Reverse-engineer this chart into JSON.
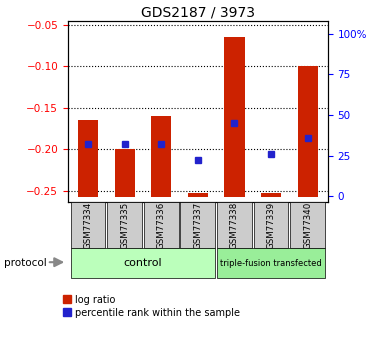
{
  "title": "GDS2187 / 3973",
  "samples": [
    "GSM77334",
    "GSM77335",
    "GSM77336",
    "GSM77337",
    "GSM77338",
    "GSM77339",
    "GSM77340"
  ],
  "log_ratio": [
    -0.165,
    -0.2,
    -0.16,
    -0.252,
    -0.065,
    -0.252,
    -0.1
  ],
  "bar_bottom": -0.257,
  "percentile_rank": [
    32,
    32,
    32,
    22,
    45,
    26,
    36
  ],
  "ylim_left": [
    -0.263,
    -0.045
  ],
  "ylim_right": [
    -3.5,
    108
  ],
  "yticks_left": [
    -0.25,
    -0.2,
    -0.15,
    -0.1,
    -0.05
  ],
  "yticks_right": [
    0,
    25,
    50,
    75,
    100
  ],
  "ytick_labels_right": [
    "0",
    "25",
    "50",
    "75",
    "100%"
  ],
  "bar_color": "#cc2200",
  "blue_color": "#2222cc",
  "control_label": "control",
  "transfected_label": "triple-fusion transfected",
  "protocol_label": "protocol",
  "legend_log_ratio": "log ratio",
  "legend_percentile": "percentile rank within the sample",
  "sample_box_color": "#cccccc",
  "control_bg": "#bbffbb",
  "transfected_bg": "#99ee99"
}
